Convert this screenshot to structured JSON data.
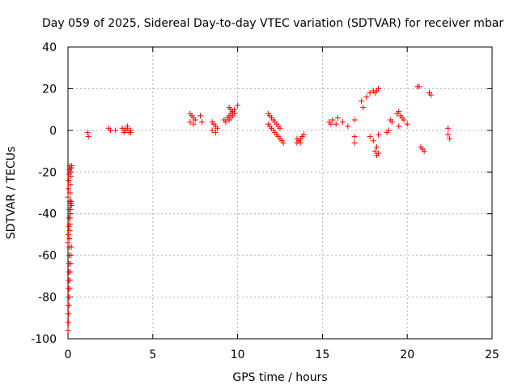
{
  "chart_data": {
    "type": "scatter",
    "title": "Day 059 of 2025, Sidereal Day-to-day VTEC variation (SDTVAR) for receiver mbar",
    "xlabel": "GPS time / hours",
    "ylabel": "SDTVAR / TECUs",
    "xlim": [
      0,
      25
    ],
    "ylim": [
      -100,
      40
    ],
    "xticks": [
      0,
      5,
      10,
      15,
      20,
      25
    ],
    "yticks": [
      -100,
      -80,
      -60,
      -40,
      -20,
      0,
      20,
      40
    ],
    "grid": true,
    "marker": "plus",
    "series": [
      {
        "name": "SDTVAR",
        "color": "#ff0000",
        "x": [
          0.0,
          0.02,
          0.04,
          0.06,
          0.08,
          0.1,
          0.12,
          0.14,
          0.16,
          0.18,
          0.2,
          0.0,
          0.02,
          0.04,
          0.06,
          0.08,
          0.1,
          0.12,
          0.14,
          0.16,
          0.18,
          0.2,
          0.22,
          0.0,
          0.01,
          0.02,
          0.03,
          0.04,
          0.05,
          0.06,
          0.07,
          0.08,
          0.09,
          0.1,
          0.11,
          0.12,
          0.13,
          0.14,
          0.15,
          0.16,
          0.17,
          0.18,
          0.19,
          0.2,
          0.0,
          0.02,
          0.04,
          0.06,
          0.08,
          0.1,
          0.12,
          1.15,
          1.2,
          2.4,
          2.5,
          2.8,
          3.2,
          3.3,
          3.4,
          3.5,
          3.6,
          3.7,
          3.3,
          3.5,
          3.7,
          7.2,
          7.3,
          7.4,
          7.5,
          7.2,
          7.4,
          7.8,
          7.9,
          8.5,
          8.6,
          8.7,
          8.8,
          8.5,
          8.7,
          9.2,
          9.3,
          9.4,
          9.5,
          9.6,
          9.7,
          9.8,
          9.5,
          9.6,
          9.7,
          9.5,
          9.6,
          9.7,
          9.8,
          10.0,
          11.8,
          11.9,
          12.0,
          12.1,
          12.2,
          12.3,
          12.4,
          12.5,
          11.8,
          11.9,
          12.0,
          12.1,
          12.2,
          12.3,
          12.4,
          12.5,
          12.6,
          12.7,
          13.5,
          13.6,
          13.7,
          13.8,
          13.9,
          13.5,
          13.6,
          13.7,
          15.4,
          15.5,
          15.6,
          15.8,
          15.9,
          16.2,
          16.5,
          16.9,
          16.9,
          16.9,
          17.3,
          17.4,
          17.6,
          17.8,
          18.0,
          17.8,
          18.0,
          18.1,
          18.2,
          18.3,
          18.1,
          18.2,
          18.3,
          18.2,
          18.3,
          18.8,
          18.9,
          19.0,
          19.1,
          19.4,
          19.5,
          19.6,
          19.7,
          19.5,
          19.8,
          20.0,
          20.6,
          20.7,
          20.8,
          20.9,
          21.0,
          21.3,
          21.4,
          22.4,
          22.4,
          22.5
        ],
        "y": [
          -96,
          -92,
          -88,
          -84,
          -80,
          -76,
          -72,
          -68,
          -64,
          -60,
          -56,
          -54,
          -50,
          -46,
          -42,
          -38,
          -34,
          -30,
          -26,
          -22,
          -20,
          -18,
          -17,
          -88,
          -84,
          -80,
          -76,
          -72,
          -68,
          -64,
          -60,
          -56,
          -52,
          -48,
          -45,
          -42,
          -40,
          -38,
          -36,
          -35,
          -34,
          -34,
          -35,
          -36,
          -32,
          -28,
          -24,
          -21,
          -19,
          -17,
          -18,
          -1,
          -3,
          1,
          0,
          0,
          1,
          -1,
          0,
          1,
          -1,
          0,
          0,
          2,
          -1,
          8,
          7,
          6,
          5,
          4,
          3,
          7,
          4,
          4,
          3,
          2,
          1,
          0,
          -1,
          5,
          4,
          6,
          7,
          8,
          9,
          10,
          5,
          6,
          7,
          11,
          10,
          9,
          8,
          12,
          8,
          7,
          6,
          5,
          4,
          3,
          2,
          1,
          3,
          2,
          1,
          0,
          -1,
          -2,
          -3,
          -4,
          -5,
          -6,
          -4,
          -5,
          -6,
          -3,
          -2,
          -6,
          -5,
          -4,
          4,
          3,
          5,
          3,
          6,
          4,
          2,
          5,
          -3,
          -6,
          14,
          11,
          16,
          18,
          19,
          -3,
          -5,
          -10,
          -12,
          -11,
          18,
          19,
          20,
          -8,
          -2,
          -1,
          0,
          5,
          4,
          8,
          9,
          7,
          6,
          2,
          5,
          3,
          21,
          21,
          -8,
          -9,
          -10,
          18,
          17,
          1,
          -2,
          -4
        ]
      }
    ]
  }
}
